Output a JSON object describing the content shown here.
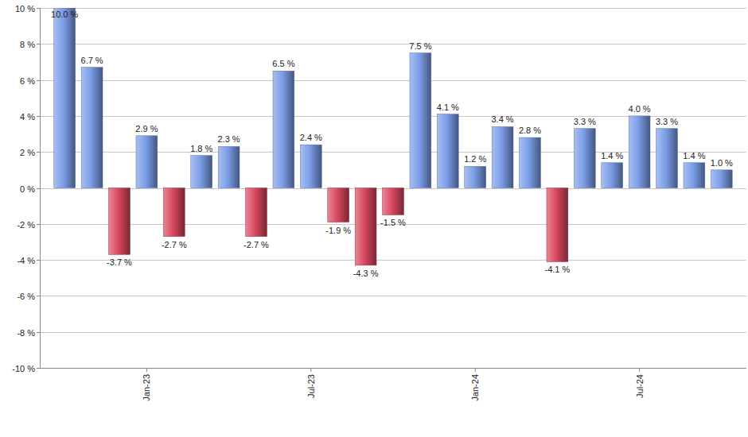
{
  "chart_data": {
    "type": "bar",
    "categories": [
      null,
      null,
      null,
      "Jan-23",
      null,
      null,
      null,
      null,
      null,
      "Jul-23",
      null,
      null,
      null,
      null,
      null,
      "Jan-24",
      null,
      null,
      null,
      null,
      null,
      "Jul-24",
      null,
      null,
      null
    ],
    "values": [
      10.0,
      6.7,
      -3.7,
      2.9,
      -2.7,
      1.8,
      2.3,
      -2.7,
      6.5,
      2.4,
      -1.9,
      -4.3,
      -1.5,
      7.5,
      4.1,
      1.2,
      3.4,
      2.8,
      -4.1,
      3.3,
      1.4,
      4.0,
      3.3,
      1.4,
      1.0
    ],
    "value_labels": [
      "10.0 %",
      "6.7 %",
      "-3.7 %",
      "2.9 %",
      "-2.7 %",
      "1.8 %",
      "2.3 %",
      "-2.7 %",
      "6.5 %",
      "2.4 %",
      "-1.9 %",
      "-4.3 %",
      "-1.5 %",
      "7.5 %",
      "4.1 %",
      "1.2 %",
      "3.4 %",
      "2.8 %",
      "-4.1 %",
      "3.3 %",
      "1.4 %",
      "4.0 %",
      "3.3 %",
      "1.4 %",
      "1.0 %"
    ],
    "colors": [
      "#7b9de8",
      "#7b9de8",
      "#d9475f",
      "#7b9de8",
      "#d9475f",
      "#7b9de8",
      "#7b9de8",
      "#d9475f",
      "#7b9de8",
      "#7b9de8",
      "#d9475f",
      "#d9475f",
      "#d9475f",
      "#7b9de8",
      "#7b9de8",
      "#7b9de8",
      "#7b9de8",
      "#7b9de8",
      "#d9475f",
      "#7b9de8",
      "#7b9de8",
      "#7b9de8",
      "#7b9de8",
      "#7b9de8",
      "#7b9de8"
    ],
    "ylim": [
      -10,
      10
    ],
    "yticks": [
      {
        "value": -10,
        "label": "-10 %"
      },
      {
        "value": -8,
        "label": "-8 %"
      },
      {
        "value": -6,
        "label": "-6 %"
      },
      {
        "value": -4,
        "label": "-4 %"
      },
      {
        "value": -2,
        "label": "-2 %"
      },
      {
        "value": 0,
        "label": "0 %"
      },
      {
        "value": 2,
        "label": "2 %"
      },
      {
        "value": 4,
        "label": "4 %"
      },
      {
        "value": 6,
        "label": "6 %"
      },
      {
        "value": 8,
        "label": "8 %"
      },
      {
        "value": 10,
        "label": "10 %"
      }
    ],
    "grid": true,
    "data_labels": true
  }
}
